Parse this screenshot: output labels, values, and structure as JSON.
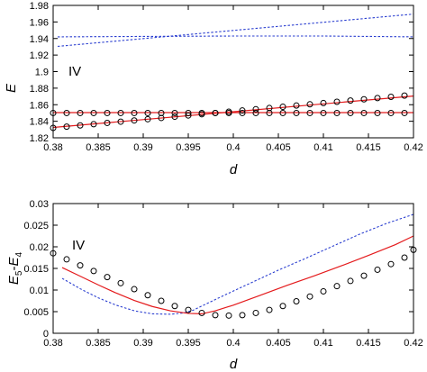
{
  "chart_data": [
    {
      "type": "line",
      "panel_label": "IV",
      "xlabel": "d",
      "ylabel": "E",
      "xlim": [
        0.38,
        0.42
      ],
      "ylim": [
        1.82,
        1.98
      ],
      "xticks": [
        "0.38",
        "0.385",
        "0.39",
        "0.395",
        "0.4",
        "0.405",
        "0.41",
        "0.415",
        "0.42"
      ],
      "yticks": [
        "1.82",
        "1.84",
        "1.86",
        "1.88",
        "1.9",
        "1.92",
        "1.94",
        "1.96",
        "1.98"
      ],
      "grid": false,
      "colors": {
        "solid": "#e41a1c",
        "dashed": "#2b3fd0",
        "markers": "#000000"
      },
      "series": [
        {
          "style": "dashed",
          "color": "#2b3fd0",
          "x": [
            0.3805,
            0.42
          ],
          "y": [
            1.9305,
            1.9695
          ]
        },
        {
          "style": "dashed",
          "color": "#2b3fd0",
          "x": [
            0.3805,
            0.39,
            0.4,
            0.41,
            0.42
          ],
          "y": [
            1.942,
            1.9425,
            1.943,
            1.943,
            1.942
          ]
        },
        {
          "style": "solid",
          "color": "#e41a1c",
          "x": [
            0.38,
            0.42
          ],
          "y": [
            1.8325,
            1.8705
          ]
        },
        {
          "style": "solid",
          "color": "#e41a1c",
          "x": [
            0.38,
            0.42
          ],
          "y": [
            1.8505,
            1.8505
          ]
        },
        {
          "style": "circles",
          "color": "#000000",
          "x": [
            0.38,
            0.3815,
            0.383,
            0.3845,
            0.386,
            0.3875,
            0.389,
            0.3905,
            0.392,
            0.3935,
            0.395,
            0.3965,
            0.398,
            0.3995,
            0.401,
            0.4025,
            0.404,
            0.4055,
            0.407,
            0.4085,
            0.41,
            0.4115,
            0.413,
            0.4145,
            0.416,
            0.4175,
            0.419
          ],
          "y": [
            1.832,
            1.8335,
            1.835,
            1.8365,
            1.838,
            1.8395,
            1.841,
            1.8425,
            1.844,
            1.8455,
            1.847,
            1.8485,
            1.85,
            1.8515,
            1.853,
            1.8545,
            1.856,
            1.8575,
            1.859,
            1.8605,
            1.862,
            1.8635,
            1.865,
            1.8665,
            1.868,
            1.8695,
            1.871
          ]
        },
        {
          "style": "circles",
          "color": "#000000",
          "x": [
            0.38,
            0.3815,
            0.383,
            0.3845,
            0.386,
            0.3875,
            0.389,
            0.3905,
            0.392,
            0.3935,
            0.395,
            0.3965,
            0.398,
            0.3995,
            0.401,
            0.4025,
            0.404,
            0.4055,
            0.407,
            0.4085,
            0.41,
            0.4115,
            0.413,
            0.4145,
            0.416,
            0.4175,
            0.419
          ],
          "y": [
            1.85,
            1.85,
            1.85,
            1.85,
            1.85,
            1.85,
            1.85,
            1.85,
            1.85,
            1.85,
            1.85,
            1.85,
            1.85,
            1.85,
            1.85,
            1.85,
            1.85,
            1.85,
            1.85,
            1.85,
            1.85,
            1.85,
            1.85,
            1.85,
            1.85,
            1.85,
            1.85
          ]
        }
      ]
    },
    {
      "type": "line",
      "panel_label": "IV",
      "xlabel": "d",
      "ylabel_main": "E",
      "ylabel_sub1": "5",
      "ylabel_dash": "-",
      "ylabel_main2": "E",
      "ylabel_sub2": "4",
      "xlim": [
        0.38,
        0.42
      ],
      "ylim": [
        0,
        0.03
      ],
      "xticks": [
        "0.38",
        "0.385",
        "0.39",
        "0.395",
        "0.4",
        "0.405",
        "0.41",
        "0.415",
        "0.42"
      ],
      "yticks": [
        "0",
        "0.005",
        "0.01",
        "0.015",
        "0.02",
        "0.025",
        "0.03"
      ],
      "grid": false,
      "colors": {
        "solid": "#e41a1c",
        "dashed": "#2b3fd0",
        "markers": "#000000"
      },
      "series": [
        {
          "style": "dashed",
          "color": "#2b3fd0",
          "x": [
            0.381,
            0.383,
            0.385,
            0.387,
            0.389,
            0.391,
            0.393,
            0.3945,
            0.3955,
            0.397,
            0.399,
            0.402,
            0.405,
            0.408,
            0.411,
            0.414,
            0.417,
            0.42
          ],
          "y": [
            0.0127,
            0.0103,
            0.0082,
            0.0065,
            0.0052,
            0.0045,
            0.0044,
            0.0047,
            0.0053,
            0.0068,
            0.0088,
            0.0117,
            0.0146,
            0.0173,
            0.0201,
            0.0229,
            0.0254,
            0.0275
          ]
        },
        {
          "style": "solid",
          "color": "#e41a1c",
          "x": [
            0.381,
            0.383,
            0.385,
            0.387,
            0.389,
            0.391,
            0.393,
            0.395,
            0.3965,
            0.398,
            0.4,
            0.403,
            0.406,
            0.409,
            0.412,
            0.415,
            0.418,
            0.42
          ],
          "y": [
            0.0152,
            0.0132,
            0.0112,
            0.0093,
            0.0076,
            0.0062,
            0.0052,
            0.0046,
            0.0045,
            0.0052,
            0.0065,
            0.0088,
            0.0111,
            0.0133,
            0.0156,
            0.018,
            0.0205,
            0.0225
          ]
        },
        {
          "style": "circles",
          "color": "#000000",
          "x": [
            0.38,
            0.3815,
            0.383,
            0.3845,
            0.386,
            0.3875,
            0.389,
            0.3905,
            0.392,
            0.3935,
            0.395,
            0.3965,
            0.398,
            0.3995,
            0.401,
            0.4025,
            0.404,
            0.4055,
            0.407,
            0.4085,
            0.41,
            0.4115,
            0.413,
            0.4145,
            0.416,
            0.4175,
            0.419,
            0.42
          ],
          "y": [
            0.0185,
            0.0171,
            0.0157,
            0.0144,
            0.013,
            0.0116,
            0.0102,
            0.0088,
            0.0075,
            0.0063,
            0.0054,
            0.0047,
            0.0042,
            0.0041,
            0.0042,
            0.0047,
            0.0054,
            0.0063,
            0.0074,
            0.0085,
            0.0097,
            0.0109,
            0.0121,
            0.0133,
            0.0147,
            0.016,
            0.0175,
            0.0193
          ]
        }
      ]
    }
  ]
}
